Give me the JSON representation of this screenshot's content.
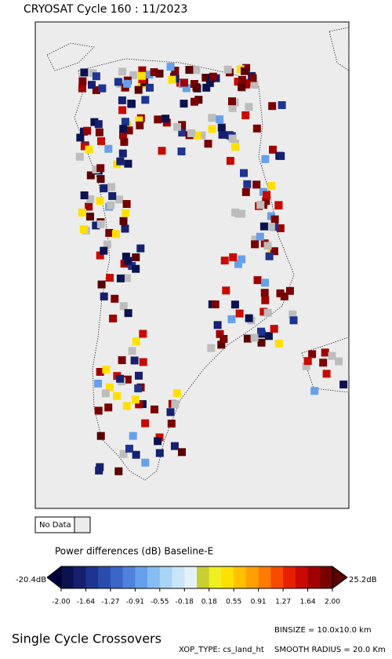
{
  "header": {
    "title": "CRYOSAT Cycle 160 : 11/2023"
  },
  "legend": {
    "no_data": "No Data",
    "caption": "Power differences (dB) Baseline-E",
    "min_label": "-20.4dB",
    "max_label": "25.2dB",
    "ticks": [
      "-2.00",
      "-1.64",
      "-1.27",
      "-0.91",
      "-0.55",
      "-0.18",
      "0.18",
      "0.55",
      "0.91",
      "1.27",
      "1.64",
      "2.00"
    ]
  },
  "footer": {
    "name": "Single Cycle Crossovers",
    "binsize": "BINSIZE = 10.0x10.0 km",
    "xop_type": "XOP_TYPE: cs_land_ht",
    "smooth_radius": "SMOOTH RADIUS = 20.0 Km"
  }
}
